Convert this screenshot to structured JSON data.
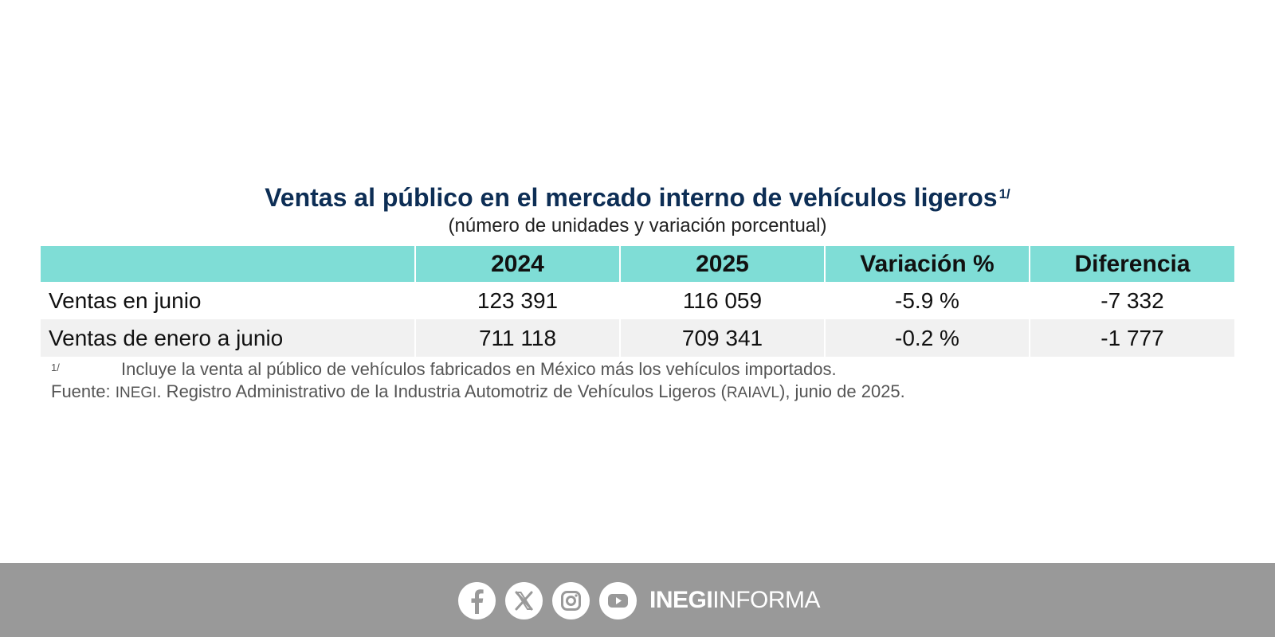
{
  "title": "Ventas al público en el mercado interno de vehículos ligeros",
  "title_footnote_mark": "1/",
  "subtitle": "(número de unidades y variación porcentual)",
  "table": {
    "headers": [
      "",
      "2024",
      "2025",
      "Variación %",
      "Diferencia"
    ],
    "rows": [
      [
        "Ventas en junio",
        "123 391",
        "116 059",
        "-5.9 %",
        "-7 332"
      ],
      [
        "Ventas de enero a junio",
        "711 118",
        "709 341",
        "-0.2 %",
        "-1 777"
      ]
    ]
  },
  "notes": {
    "footnote_mark": "1/",
    "footnote_text": "Incluye la venta al público de vehículos fabricados en México más los vehículos importados.",
    "source_label": "Fuente: ",
    "source_org": "INEGI",
    "source_text_1": ". Registro Administrativo de la Industria Automotriz de Vehículos Ligeros (",
    "source_acronym": "RAIAVL",
    "source_text_2": "), junio de 2025."
  },
  "footer": {
    "brand_bold": "INEGI",
    "brand_light": "INFORMA",
    "social_icons": [
      "facebook-icon",
      "x-icon",
      "instagram-icon",
      "youtube-icon"
    ]
  },
  "colors": {
    "header_bg": "#7fddd6",
    "title": "#0d2e55",
    "footer_bg": "#999999",
    "row_alt": "#f1f1f1"
  }
}
